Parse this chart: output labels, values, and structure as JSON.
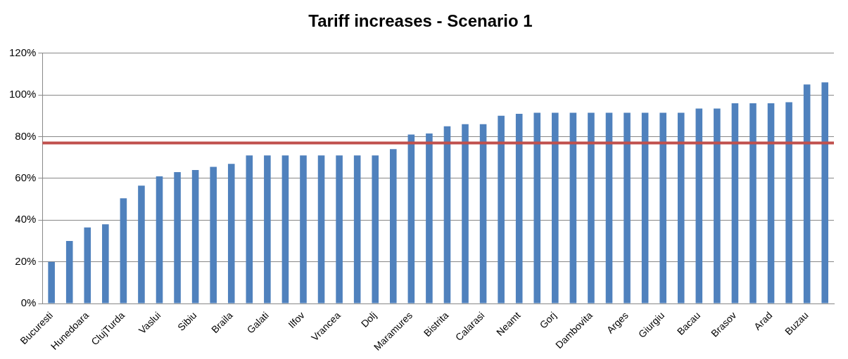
{
  "chart_data": {
    "type": "bar",
    "title": "Tariff increases - Scenario 1",
    "categories": [
      "Bucuresti",
      null,
      "Hunedoara",
      null,
      "ClujTurda",
      null,
      "Vaslui",
      null,
      "Sibiu",
      null,
      "Braila",
      null,
      "Galati",
      null,
      "Ilfov",
      null,
      "Vrancea",
      null,
      "Dolj",
      null,
      "Maramures",
      null,
      "Bistrita",
      null,
      "Calarasi",
      null,
      "Neamt",
      null,
      "Gorj",
      null,
      "Dambovita",
      null,
      "Arges",
      null,
      "Giurgiu",
      null,
      "Bacau",
      null,
      "Brasov",
      null,
      "Arad",
      null,
      "Buzau",
      null
    ],
    "values": [
      20,
      30,
      36.5,
      38,
      50.5,
      56.5,
      61,
      63,
      64,
      65.5,
      67,
      71,
      71,
      71,
      71,
      71,
      71,
      71,
      71,
      74,
      81,
      81.5,
      85,
      86,
      86,
      90,
      91,
      91.5,
      91.5,
      91.5,
      91.5,
      91.5,
      91.5,
      91.5,
      91.5,
      91.5,
      93.5,
      93.5,
      96,
      96,
      96,
      96.5,
      105,
      106
    ],
    "color": "#4f81bd",
    "ylim": [
      0,
      120
    ],
    "yticks": [
      {
        "value": 0,
        "label": "0%"
      },
      {
        "value": 20,
        "label": "20%"
      },
      {
        "value": 40,
        "label": "40%"
      },
      {
        "value": 60,
        "label": "60%"
      },
      {
        "value": 80,
        "label": "80%"
      },
      {
        "value": 100,
        "label": "100%"
      },
      {
        "value": 120,
        "label": "120%"
      }
    ],
    "grid": "y",
    "legend": false,
    "ref_lines": [
      {
        "axis": "y",
        "value": 77,
        "color": "#c0504d"
      }
    ]
  }
}
